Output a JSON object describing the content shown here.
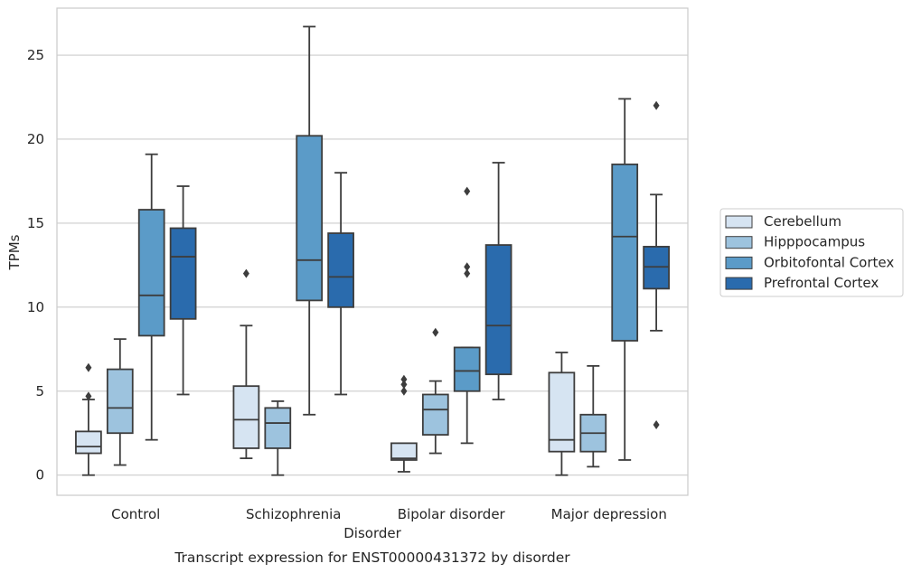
{
  "chart_data": {
    "type": "box",
    "caption": "Transcript expression for ENST00000431372 by disorder",
    "xlabel": "Disorder",
    "ylabel": "TPMs",
    "ylim": [
      -1.2,
      27.8
    ],
    "yticks": [
      0,
      5,
      10,
      15,
      20,
      25
    ],
    "grid": "horizontal",
    "legend_position": "right",
    "categories": [
      "Control",
      "Schizophrenia",
      "Bipolar disorder",
      "Major depression"
    ],
    "series": [
      {
        "name": "Cerebellum",
        "color": "#d6e4f2",
        "boxes": [
          {
            "whisker_low": 0.0,
            "q1": 1.3,
            "median": 1.7,
            "q3": 2.6,
            "whisker_high": 4.5,
            "outliers": [
              4.7,
              6.4
            ]
          },
          {
            "whisker_low": 1.0,
            "q1": 1.6,
            "median": 3.3,
            "q3": 5.3,
            "whisker_high": 8.9,
            "outliers": [
              12.0
            ]
          },
          {
            "whisker_low": 0.2,
            "q1": 0.9,
            "median": 1.0,
            "q3": 1.9,
            "whisker_high": 1.9,
            "outliers": [
              5.0,
              5.4,
              5.7
            ]
          },
          {
            "whisker_low": 0.0,
            "q1": 1.4,
            "median": 2.1,
            "q3": 6.1,
            "whisker_high": 7.3,
            "outliers": []
          }
        ]
      },
      {
        "name": "Hipppocampus",
        "color": "#9dc3de",
        "boxes": [
          {
            "whisker_low": 0.6,
            "q1": 2.5,
            "median": 4.0,
            "q3": 6.3,
            "whisker_high": 8.1,
            "outliers": []
          },
          {
            "whisker_low": 0.0,
            "q1": 1.6,
            "median": 3.1,
            "q3": 4.0,
            "whisker_high": 4.4,
            "outliers": []
          },
          {
            "whisker_low": 1.3,
            "q1": 2.4,
            "median": 3.9,
            "q3": 4.8,
            "whisker_high": 5.6,
            "outliers": [
              8.5
            ]
          },
          {
            "whisker_low": 0.5,
            "q1": 1.4,
            "median": 2.5,
            "q3": 3.6,
            "whisker_high": 6.5,
            "outliers": []
          }
        ]
      },
      {
        "name": "Orbitofontal Cortex",
        "color": "#5b9bc8",
        "boxes": [
          {
            "whisker_low": 2.1,
            "q1": 8.3,
            "median": 10.7,
            "q3": 15.8,
            "whisker_high": 19.1,
            "outliers": []
          },
          {
            "whisker_low": 3.6,
            "q1": 10.4,
            "median": 12.8,
            "q3": 20.2,
            "whisker_high": 26.7,
            "outliers": []
          },
          {
            "whisker_low": 1.9,
            "q1": 5.0,
            "median": 6.2,
            "q3": 7.6,
            "whisker_high": 7.6,
            "outliers": [
              12.0,
              12.4,
              16.9
            ]
          },
          {
            "whisker_low": 0.9,
            "q1": 8.0,
            "median": 14.2,
            "q3": 18.5,
            "whisker_high": 22.4,
            "outliers": []
          }
        ]
      },
      {
        "name": "Prefrontal Cortex",
        "color": "#2a6bad",
        "boxes": [
          {
            "whisker_low": 4.8,
            "q1": 9.3,
            "median": 13.0,
            "q3": 14.7,
            "whisker_high": 17.2,
            "outliers": []
          },
          {
            "whisker_low": 4.8,
            "q1": 10.0,
            "median": 11.8,
            "q3": 14.4,
            "whisker_high": 18.0,
            "outliers": []
          },
          {
            "whisker_low": 4.5,
            "q1": 6.0,
            "median": 8.9,
            "q3": 13.7,
            "whisker_high": 18.6,
            "outliers": []
          },
          {
            "whisker_low": 8.6,
            "q1": 11.1,
            "median": 12.4,
            "q3": 13.6,
            "whisker_high": 16.7,
            "outliers": [
              3.0,
              22.0
            ]
          }
        ]
      }
    ]
  }
}
